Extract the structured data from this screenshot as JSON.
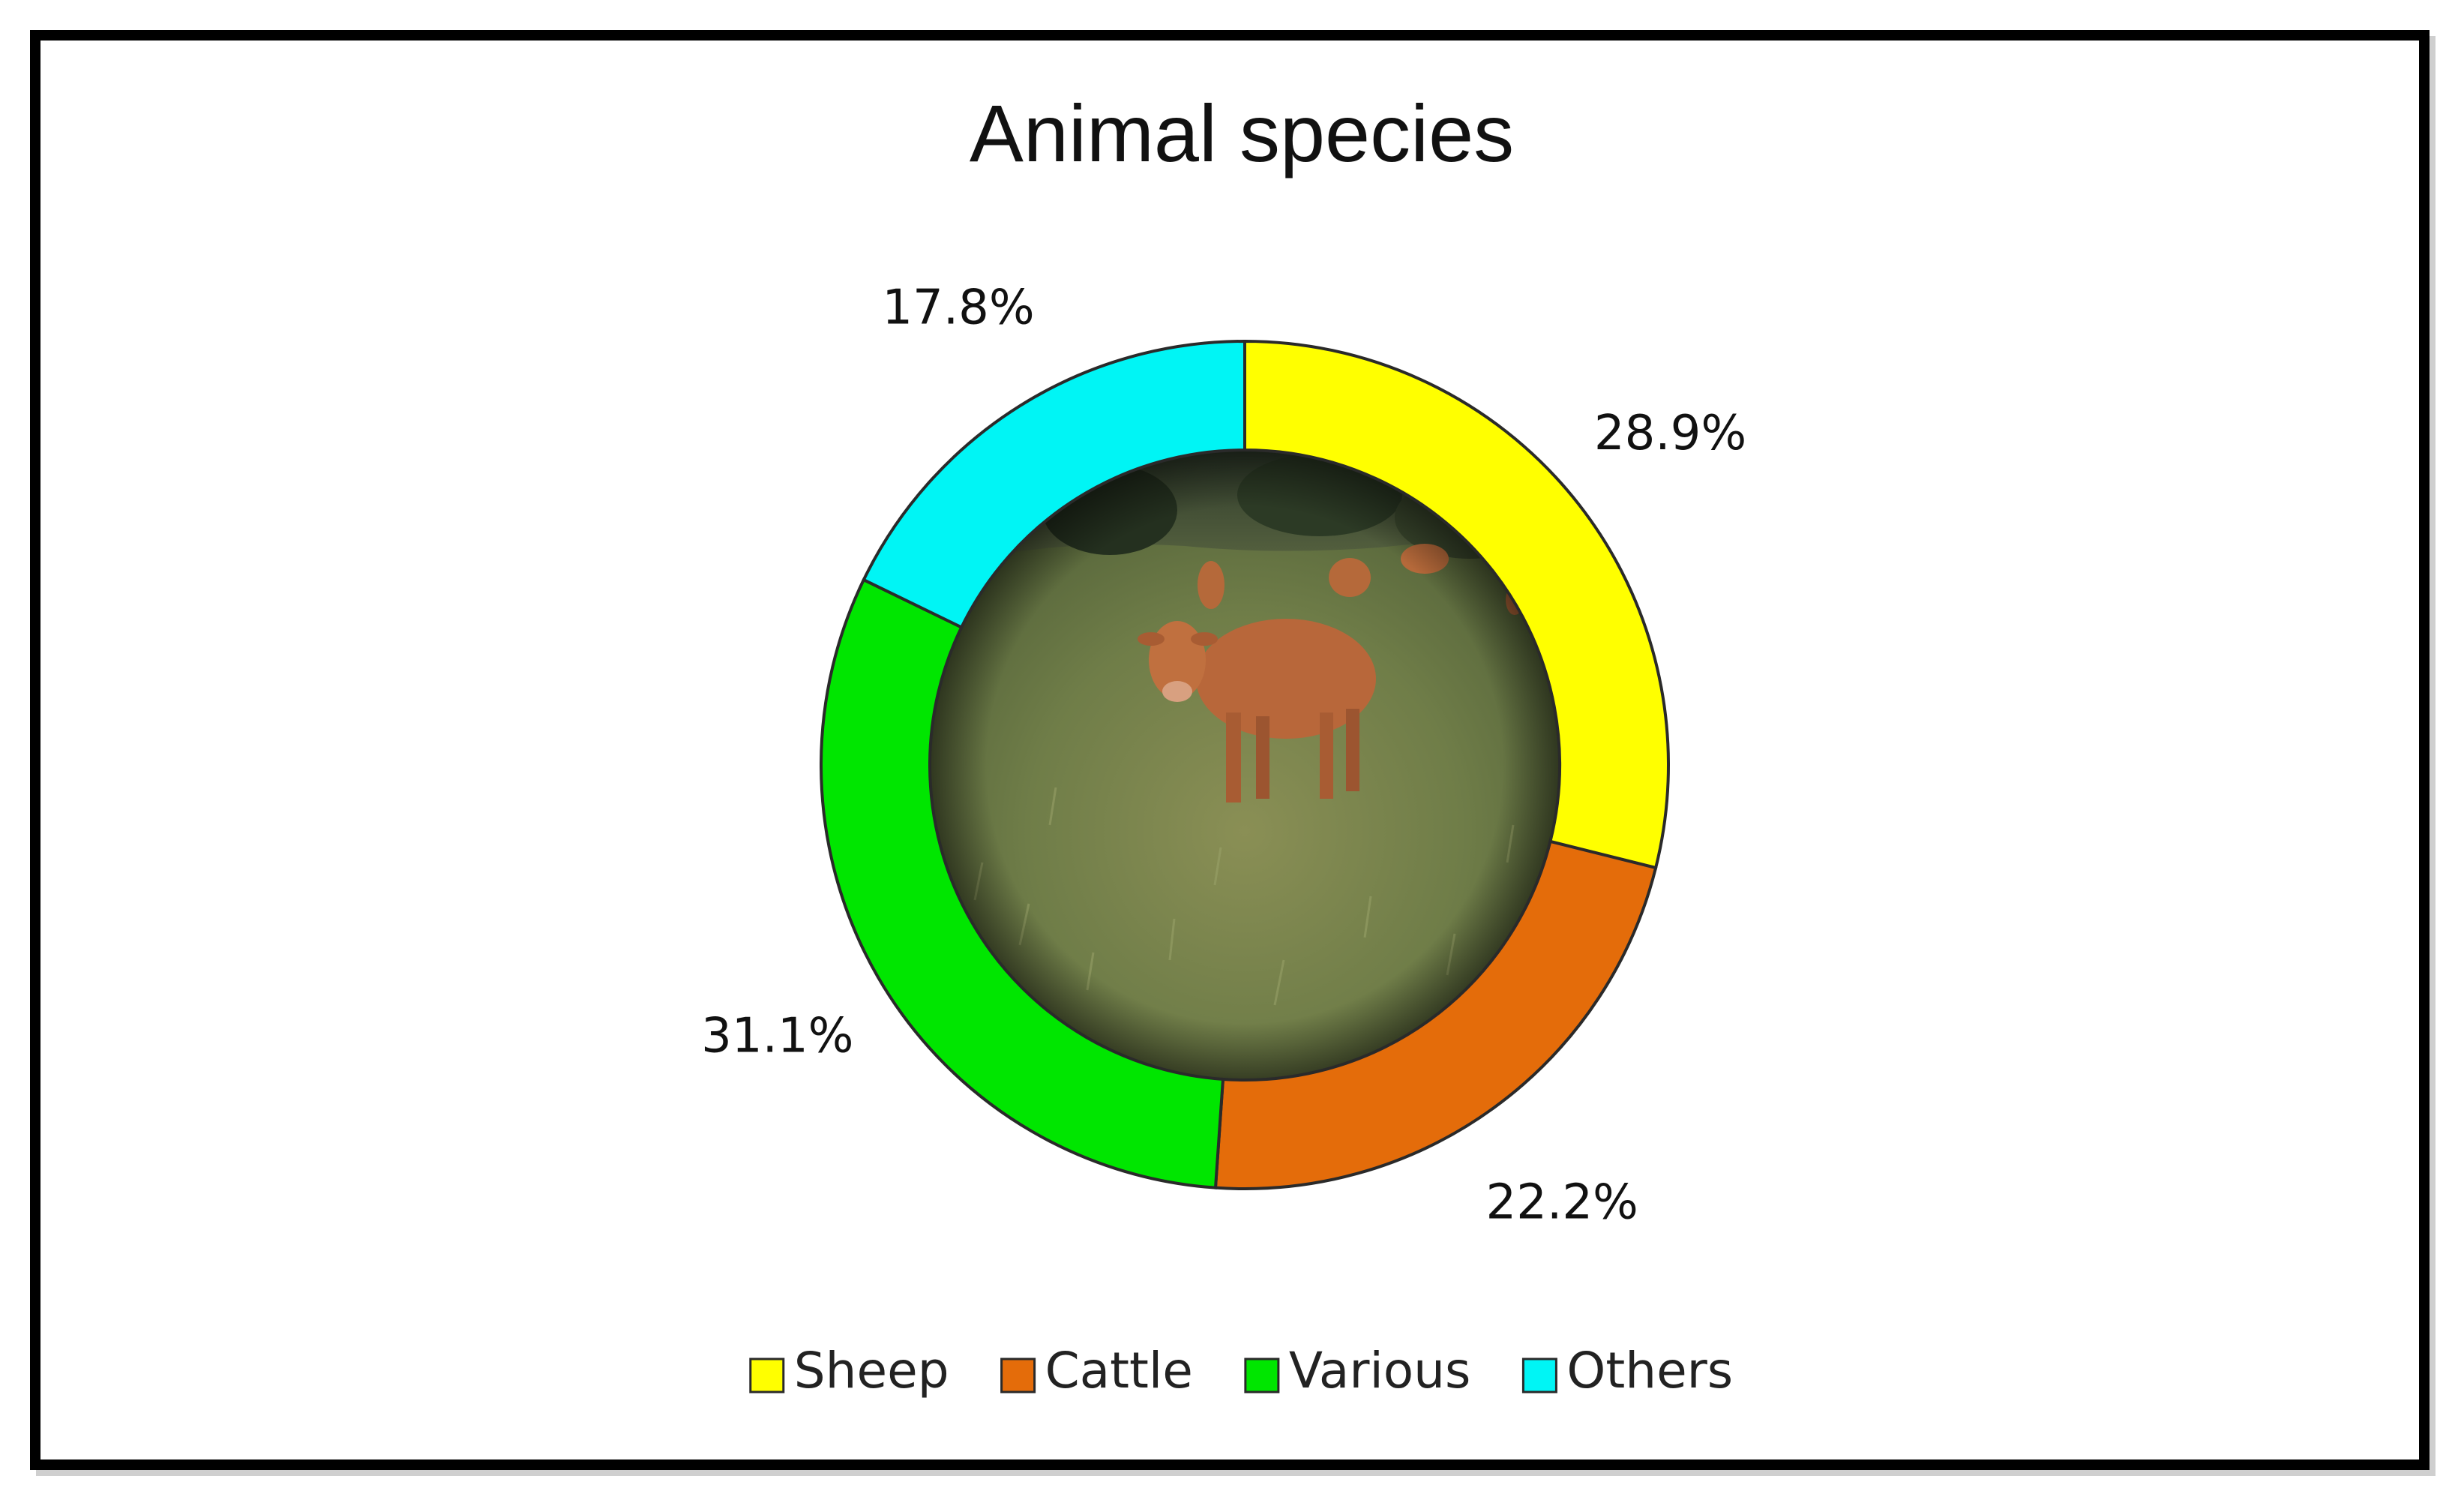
{
  "chart_data": {
    "type": "pie",
    "variant": "donut",
    "title": "Animal species",
    "categories": [
      "Sheep",
      "Cattle",
      "Various",
      "Others"
    ],
    "values": [
      28.9,
      22.2,
      31.1,
      17.8
    ],
    "labels": [
      "28.9%",
      "22.2%",
      "31.1%",
      "17.8%"
    ],
    "colors": [
      "#ffff00",
      "#e46c0a",
      "#00e600",
      "#00f5f5"
    ],
    "legend_position": "bottom",
    "center_image": "photo of brown cattle grazing in a grassy field"
  },
  "colors": {
    "frame": "#000000",
    "background": "#ffffff",
    "slice_outline": "#2a2a2a"
  }
}
